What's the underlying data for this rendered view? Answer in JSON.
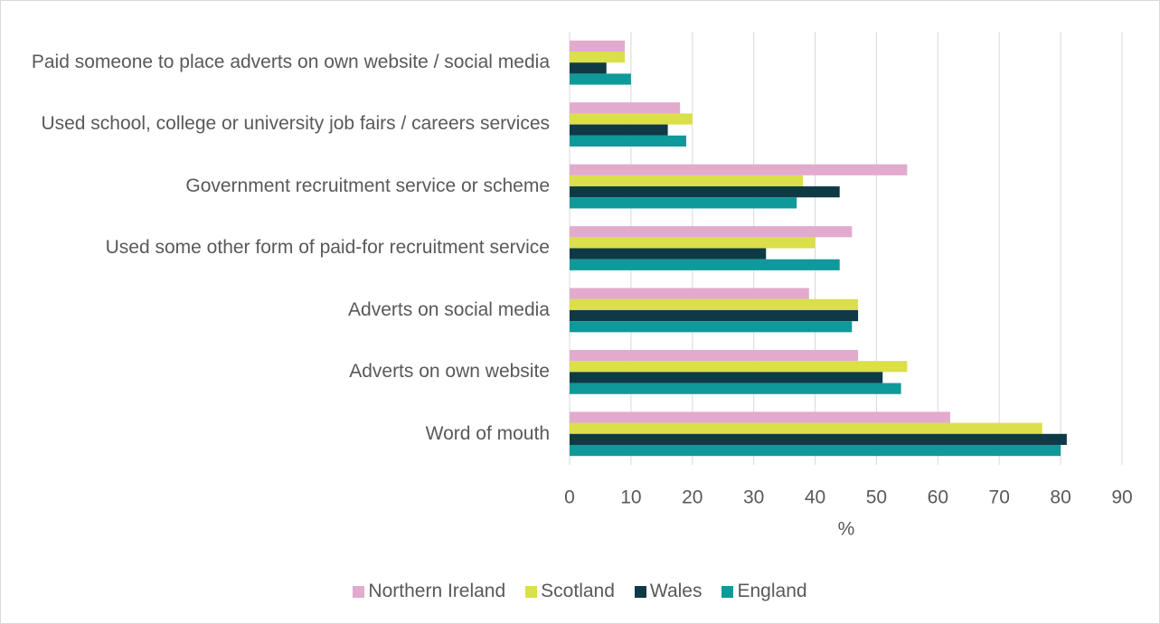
{
  "chart_data": {
    "type": "hbar",
    "x_label": "%",
    "categories": [
      "Paid someone to place adverts on own website / social media",
      "Used school, college or university job fairs / careers services",
      "Government recruitment service or scheme",
      "Used some other form of paid-for recruitment service",
      "Adverts on social media",
      "Adverts on own website",
      "Word of mouth"
    ],
    "series": [
      {
        "name": "Northern Ireland",
        "color": "#e2aacd",
        "values": [
          9,
          18,
          55,
          46,
          39,
          47,
          62
        ]
      },
      {
        "name": "Scotland",
        "color": "#dadf4a",
        "values": [
          9,
          20,
          38,
          40,
          47,
          55,
          77
        ]
      },
      {
        "name": "Wales",
        "color": "#0e3a45",
        "values": [
          6,
          16,
          44,
          32,
          47,
          51,
          81
        ]
      },
      {
        "name": "England",
        "color": "#10999a",
        "values": [
          10,
          19,
          37,
          44,
          46,
          54,
          80
        ]
      }
    ],
    "xlim": [
      0,
      90
    ],
    "xticks": [
      0,
      10,
      20,
      30,
      40,
      50,
      60,
      70,
      80,
      90
    ],
    "grid": true
  }
}
